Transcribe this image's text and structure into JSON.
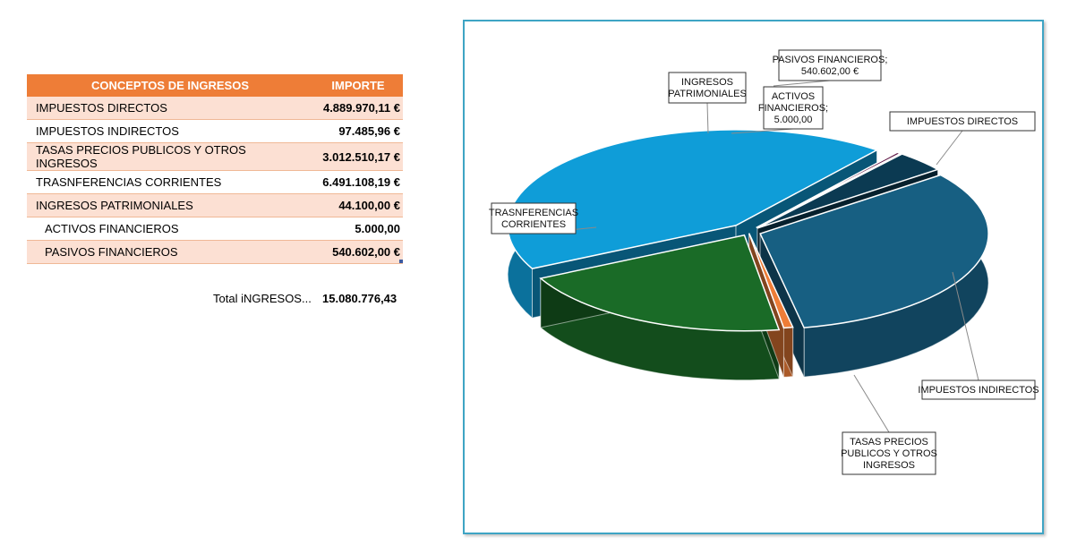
{
  "table": {
    "headers": [
      "CONCEPTOS DE INGRESOS",
      "IMPORTE"
    ],
    "rows": [
      {
        "concept": "IMPUESTOS DIRECTOS",
        "amount": "4.889.970,11 €"
      },
      {
        "concept": "IMPUESTOS INDIRECTOS",
        "amount": "97.485,96 €"
      },
      {
        "concept": "TASAS PRECIOS PUBLICOS Y OTROS INGRESOS",
        "amount": "3.012.510,17 €"
      },
      {
        "concept": "TRASNFERENCIAS CORRIENTES",
        "amount": "6.491.108,19 €"
      },
      {
        "concept": "INGRESOS PATRIMONIALES",
        "amount": "44.100,00 €"
      },
      {
        "concept": "ACTIVOS FINANCIEROS",
        "amount": "5.000,00"
      },
      {
        "concept": "PASIVOS FINANCIEROS",
        "amount": "540.602,00 €"
      }
    ],
    "total_label": "Total iNGRESOS...",
    "total_value": "15.080.776,43"
  },
  "chart_data": {
    "type": "pie",
    "style": "3d-exploded",
    "categories": [
      "IMPUESTOS DIRECTOS",
      "IMPUESTOS INDIRECTOS",
      "TASAS PRECIOS PUBLICOS Y OTROS INGRESOS",
      "TRASNFERENCIAS CORRIENTES",
      "INGRESOS PATRIMONIALES",
      "ACTIVOS FINANCIEROS",
      "PASIVOS FINANCIEROS"
    ],
    "values": [
      4889970.11,
      97485.96,
      3012510.17,
      6491108.19,
      44100.0,
      5000.0,
      540602.0
    ],
    "colors": [
      "#175f82",
      "#ee7d37",
      "#1a6b27",
      "#0f9dd8",
      "#5e1544",
      "#9b2e96",
      "#0b3a52"
    ],
    "labels": [
      [
        "IMPUESTOS DIRECTOS"
      ],
      [
        "IMPUESTOS INDIRECTOS"
      ],
      [
        "TASAS PRECIOS",
        "PUBLICOS Y OTROS",
        "INGRESOS"
      ],
      [
        "TRASNFERENCIAS",
        "CORRIENTES"
      ],
      [
        "INGRESOS",
        "PATRIMONIALES"
      ],
      [
        "ACTIVOS",
        "FINANCIEROS;",
        "5.000,00"
      ],
      [
        "PASIVOS FINANCIEROS;",
        "540.602,00 €"
      ]
    ],
    "legend": "none"
  }
}
